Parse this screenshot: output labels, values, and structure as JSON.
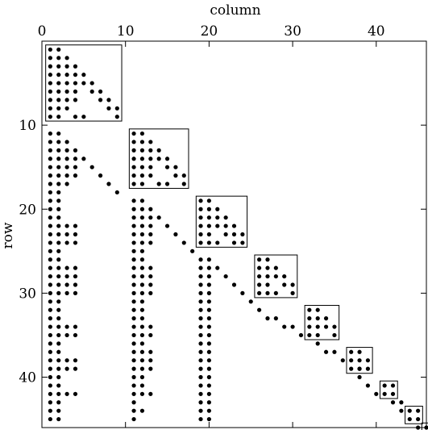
{
  "chart_data": {
    "type": "scatter",
    "title": "",
    "xlabel": "column",
    "ylabel": "row",
    "x_axis_position": "top",
    "y_axis_inverted": true,
    "xlim": [
      0,
      46
    ],
    "ylim": [
      0,
      46
    ],
    "xticks": [
      0,
      10,
      20,
      30,
      40
    ],
    "yticks": [
      10,
      20,
      30,
      40
    ],
    "grid": false,
    "legend": "none",
    "marker_color": "#000000",
    "points": [
      [
        1,
        1
      ],
      [
        2,
        1
      ],
      [
        1,
        2
      ],
      [
        2,
        2
      ],
      [
        3,
        2
      ],
      [
        1,
        3
      ],
      [
        2,
        3
      ],
      [
        3,
        3
      ],
      [
        4,
        3
      ],
      [
        1,
        4
      ],
      [
        2,
        4
      ],
      [
        3,
        4
      ],
      [
        4,
        4
      ],
      [
        5,
        4
      ],
      [
        1,
        5
      ],
      [
        2,
        5
      ],
      [
        3,
        5
      ],
      [
        4,
        5
      ],
      [
        5,
        5
      ],
      [
        6,
        5
      ],
      [
        1,
        6
      ],
      [
        2,
        6
      ],
      [
        3,
        6
      ],
      [
        4,
        6
      ],
      [
        6,
        6
      ],
      [
        7,
        6
      ],
      [
        1,
        7
      ],
      [
        2,
        7
      ],
      [
        3,
        7
      ],
      [
        4,
        7
      ],
      [
        7,
        7
      ],
      [
        8,
        7
      ],
      [
        1,
        8
      ],
      [
        2,
        8
      ],
      [
        3,
        8
      ],
      [
        8,
        8
      ],
      [
        9,
        8
      ],
      [
        1,
        9
      ],
      [
        2,
        9
      ],
      [
        4,
        9
      ],
      [
        5,
        9
      ],
      [
        9,
        9
      ],
      [
        11,
        11
      ],
      [
        12,
        11
      ],
      [
        11,
        12
      ],
      [
        12,
        12
      ],
      [
        13,
        12
      ],
      [
        11,
        13
      ],
      [
        12,
        13
      ],
      [
        13,
        13
      ],
      [
        14,
        13
      ],
      [
        11,
        14
      ],
      [
        12,
        14
      ],
      [
        13,
        14
      ],
      [
        14,
        14
      ],
      [
        15,
        14
      ],
      [
        11,
        15
      ],
      [
        12,
        15
      ],
      [
        13,
        15
      ],
      [
        15,
        15
      ],
      [
        16,
        15
      ],
      [
        11,
        16
      ],
      [
        12,
        16
      ],
      [
        13,
        16
      ],
      [
        16,
        16
      ],
      [
        17,
        16
      ],
      [
        11,
        17
      ],
      [
        12,
        17
      ],
      [
        14,
        17
      ],
      [
        15,
        17
      ],
      [
        17,
        17
      ],
      [
        19,
        19
      ],
      [
        20,
        19
      ],
      [
        19,
        20
      ],
      [
        20,
        20
      ],
      [
        21,
        20
      ],
      [
        19,
        21
      ],
      [
        20,
        21
      ],
      [
        21,
        21
      ],
      [
        22,
        21
      ],
      [
        19,
        22
      ],
      [
        20,
        22
      ],
      [
        21,
        22
      ],
      [
        22,
        22
      ],
      [
        23,
        22
      ],
      [
        19,
        23
      ],
      [
        20,
        23
      ],
      [
        22,
        23
      ],
      [
        23,
        23
      ],
      [
        24,
        23
      ],
      [
        19,
        24
      ],
      [
        20,
        24
      ],
      [
        21,
        24
      ],
      [
        23,
        24
      ],
      [
        24,
        24
      ],
      [
        26,
        26
      ],
      [
        27,
        26
      ],
      [
        26,
        27
      ],
      [
        27,
        27
      ],
      [
        28,
        27
      ],
      [
        26,
        28
      ],
      [
        27,
        28
      ],
      [
        28,
        28
      ],
      [
        29,
        28
      ],
      [
        26,
        29
      ],
      [
        27,
        29
      ],
      [
        29,
        29
      ],
      [
        30,
        29
      ],
      [
        26,
        30
      ],
      [
        27,
        30
      ],
      [
        28,
        30
      ],
      [
        30,
        30
      ],
      [
        32,
        32
      ],
      [
        33,
        32
      ],
      [
        32,
        33
      ],
      [
        33,
        33
      ],
      [
        34,
        33
      ],
      [
        32,
        34
      ],
      [
        33,
        34
      ],
      [
        34,
        34
      ],
      [
        35,
        34
      ],
      [
        32,
        35
      ],
      [
        33,
        35
      ],
      [
        35,
        35
      ],
      [
        37,
        37
      ],
      [
        38,
        37
      ],
      [
        37,
        38
      ],
      [
        38,
        38
      ],
      [
        39,
        38
      ],
      [
        37,
        39
      ],
      [
        38,
        39
      ],
      [
        39,
        39
      ],
      [
        41,
        41
      ],
      [
        42,
        41
      ],
      [
        41,
        42
      ],
      [
        42,
        42
      ],
      [
        44,
        44
      ],
      [
        45,
        44
      ],
      [
        44,
        45
      ],
      [
        45,
        45
      ],
      [
        46,
        46
      ],
      [
        1,
        11
      ],
      [
        2,
        11
      ],
      [
        1,
        12
      ],
      [
        2,
        12
      ],
      [
        3,
        12
      ],
      [
        1,
        13
      ],
      [
        2,
        13
      ],
      [
        3,
        13
      ],
      [
        4,
        13
      ],
      [
        1,
        14
      ],
      [
        2,
        14
      ],
      [
        3,
        14
      ],
      [
        4,
        14
      ],
      [
        5,
        14
      ],
      [
        1,
        15
      ],
      [
        2,
        15
      ],
      [
        3,
        15
      ],
      [
        4,
        15
      ],
      [
        6,
        15
      ],
      [
        1,
        16
      ],
      [
        2,
        16
      ],
      [
        3,
        16
      ],
      [
        4,
        16
      ],
      [
        7,
        16
      ],
      [
        1,
        17
      ],
      [
        2,
        17
      ],
      [
        3,
        17
      ],
      [
        8,
        17
      ],
      [
        1,
        18
      ],
      [
        2,
        18
      ],
      [
        9,
        18
      ],
      [
        1,
        19
      ],
      [
        2,
        19
      ],
      [
        1,
        20
      ],
      [
        2,
        20
      ],
      [
        1,
        21
      ],
      [
        2,
        21
      ],
      [
        1,
        22
      ],
      [
        2,
        22
      ],
      [
        3,
        22
      ],
      [
        4,
        22
      ],
      [
        1,
        23
      ],
      [
        2,
        23
      ],
      [
        3,
        23
      ],
      [
        4,
        23
      ],
      [
        1,
        24
      ],
      [
        2,
        24
      ],
      [
        3,
        24
      ],
      [
        4,
        24
      ],
      [
        1,
        25
      ],
      [
        2,
        25
      ],
      [
        1,
        26
      ],
      [
        2,
        26
      ],
      [
        1,
        27
      ],
      [
        2,
        27
      ],
      [
        3,
        27
      ],
      [
        4,
        27
      ],
      [
        1,
        28
      ],
      [
        2,
        28
      ],
      [
        3,
        28
      ],
      [
        4,
        28
      ],
      [
        1,
        29
      ],
      [
        2,
        29
      ],
      [
        3,
        29
      ],
      [
        4,
        29
      ],
      [
        1,
        30
      ],
      [
        2,
        30
      ],
      [
        3,
        30
      ],
      [
        4,
        30
      ],
      [
        1,
        31
      ],
      [
        2,
        31
      ],
      [
        1,
        32
      ],
      [
        2,
        32
      ],
      [
        1,
        33
      ],
      [
        2,
        33
      ],
      [
        1,
        34
      ],
      [
        2,
        34
      ],
      [
        3,
        34
      ],
      [
        4,
        34
      ],
      [
        1,
        35
      ],
      [
        2,
        35
      ],
      [
        3,
        35
      ],
      [
        4,
        35
      ],
      [
        1,
        36
      ],
      [
        2,
        36
      ],
      [
        1,
        37
      ],
      [
        2,
        37
      ],
      [
        1,
        38
      ],
      [
        2,
        38
      ],
      [
        3,
        38
      ],
      [
        4,
        38
      ],
      [
        1,
        39
      ],
      [
        2,
        39
      ],
      [
        3,
        39
      ],
      [
        4,
        39
      ],
      [
        1,
        40
      ],
      [
        2,
        40
      ],
      [
        1,
        41
      ],
      [
        2,
        41
      ],
      [
        1,
        42
      ],
      [
        2,
        42
      ],
      [
        3,
        42
      ],
      [
        4,
        42
      ],
      [
        1,
        43
      ],
      [
        2,
        43
      ],
      [
        1,
        44
      ],
      [
        2,
        44
      ],
      [
        1,
        45
      ],
      [
        2,
        45
      ],
      [
        11,
        19
      ],
      [
        12,
        19
      ],
      [
        11,
        20
      ],
      [
        12,
        20
      ],
      [
        13,
        20
      ],
      [
        11,
        21
      ],
      [
        12,
        21
      ],
      [
        13,
        21
      ],
      [
        14,
        21
      ],
      [
        11,
        22
      ],
      [
        12,
        22
      ],
      [
        13,
        22
      ],
      [
        15,
        22
      ],
      [
        11,
        23
      ],
      [
        12,
        23
      ],
      [
        13,
        23
      ],
      [
        16,
        23
      ],
      [
        11,
        24
      ],
      [
        12,
        24
      ],
      [
        13,
        24
      ],
      [
        17,
        24
      ],
      [
        11,
        25
      ],
      [
        12,
        25
      ],
      [
        18,
        25
      ],
      [
        11,
        26
      ],
      [
        12,
        26
      ],
      [
        11,
        27
      ],
      [
        12,
        27
      ],
      [
        13,
        27
      ],
      [
        11,
        28
      ],
      [
        12,
        28
      ],
      [
        13,
        28
      ],
      [
        11,
        29
      ],
      [
        12,
        29
      ],
      [
        13,
        29
      ],
      [
        11,
        30
      ],
      [
        12,
        30
      ],
      [
        13,
        30
      ],
      [
        11,
        31
      ],
      [
        12,
        31
      ],
      [
        11,
        32
      ],
      [
        12,
        32
      ],
      [
        11,
        33
      ],
      [
        12,
        33
      ],
      [
        11,
        34
      ],
      [
        12,
        34
      ],
      [
        13,
        34
      ],
      [
        11,
        35
      ],
      [
        12,
        35
      ],
      [
        13,
        35
      ],
      [
        11,
        36
      ],
      [
        12,
        36
      ],
      [
        11,
        37
      ],
      [
        12,
        37
      ],
      [
        13,
        37
      ],
      [
        11,
        38
      ],
      [
        12,
        38
      ],
      [
        13,
        38
      ],
      [
        11,
        39
      ],
      [
        12,
        39
      ],
      [
        13,
        39
      ],
      [
        11,
        40
      ],
      [
        12,
        40
      ],
      [
        11,
        41
      ],
      [
        12,
        41
      ],
      [
        11,
        42
      ],
      [
        12,
        42
      ],
      [
        13,
        42
      ],
      [
        11,
        43
      ],
      [
        11,
        44
      ],
      [
        12,
        44
      ],
      [
        11,
        45
      ],
      [
        19,
        26
      ],
      [
        20,
        26
      ],
      [
        19,
        27
      ],
      [
        20,
        27
      ],
      [
        21,
        27
      ],
      [
        19,
        28
      ],
      [
        20,
        28
      ],
      [
        22,
        28
      ],
      [
        19,
        29
      ],
      [
        20,
        29
      ],
      [
        23,
        29
      ],
      [
        19,
        30
      ],
      [
        20,
        30
      ],
      [
        24,
        30
      ],
      [
        19,
        31
      ],
      [
        20,
        31
      ],
      [
        25,
        31
      ],
      [
        19,
        32
      ],
      [
        20,
        32
      ],
      [
        19,
        33
      ],
      [
        20,
        33
      ],
      [
        19,
        34
      ],
      [
        20,
        34
      ],
      [
        19,
        35
      ],
      [
        20,
        35
      ],
      [
        19,
        36
      ],
      [
        20,
        36
      ],
      [
        19,
        37
      ],
      [
        20,
        37
      ],
      [
        19,
        38
      ],
      [
        20,
        38
      ],
      [
        19,
        39
      ],
      [
        20,
        39
      ],
      [
        19,
        40
      ],
      [
        20,
        40
      ],
      [
        19,
        41
      ],
      [
        20,
        41
      ],
      [
        19,
        42
      ],
      [
        20,
        42
      ],
      [
        19,
        43
      ],
      [
        20,
        43
      ],
      [
        19,
        44
      ],
      [
        20,
        44
      ],
      [
        19,
        45
      ],
      [
        20,
        45
      ],
      [
        26,
        32
      ],
      [
        27,
        33
      ],
      [
        28,
        33
      ],
      [
        29,
        34
      ],
      [
        30,
        34
      ],
      [
        31,
        35
      ],
      [
        33,
        36
      ],
      [
        34,
        37
      ],
      [
        35,
        37
      ],
      [
        36,
        38
      ],
      [
        38,
        39
      ],
      [
        38,
        40
      ],
      [
        39,
        41
      ],
      [
        40,
        42
      ],
      [
        42,
        43
      ],
      [
        43,
        43
      ],
      [
        43,
        44
      ],
      [
        45,
        46
      ]
    ],
    "blocks": [
      [
        1,
        9
      ],
      [
        11,
        17
      ],
      [
        19,
        24
      ],
      [
        26,
        30
      ],
      [
        32,
        35
      ],
      [
        37,
        39
      ],
      [
        41,
        42
      ],
      [
        44,
        45
      ],
      [
        46,
        46
      ]
    ]
  }
}
